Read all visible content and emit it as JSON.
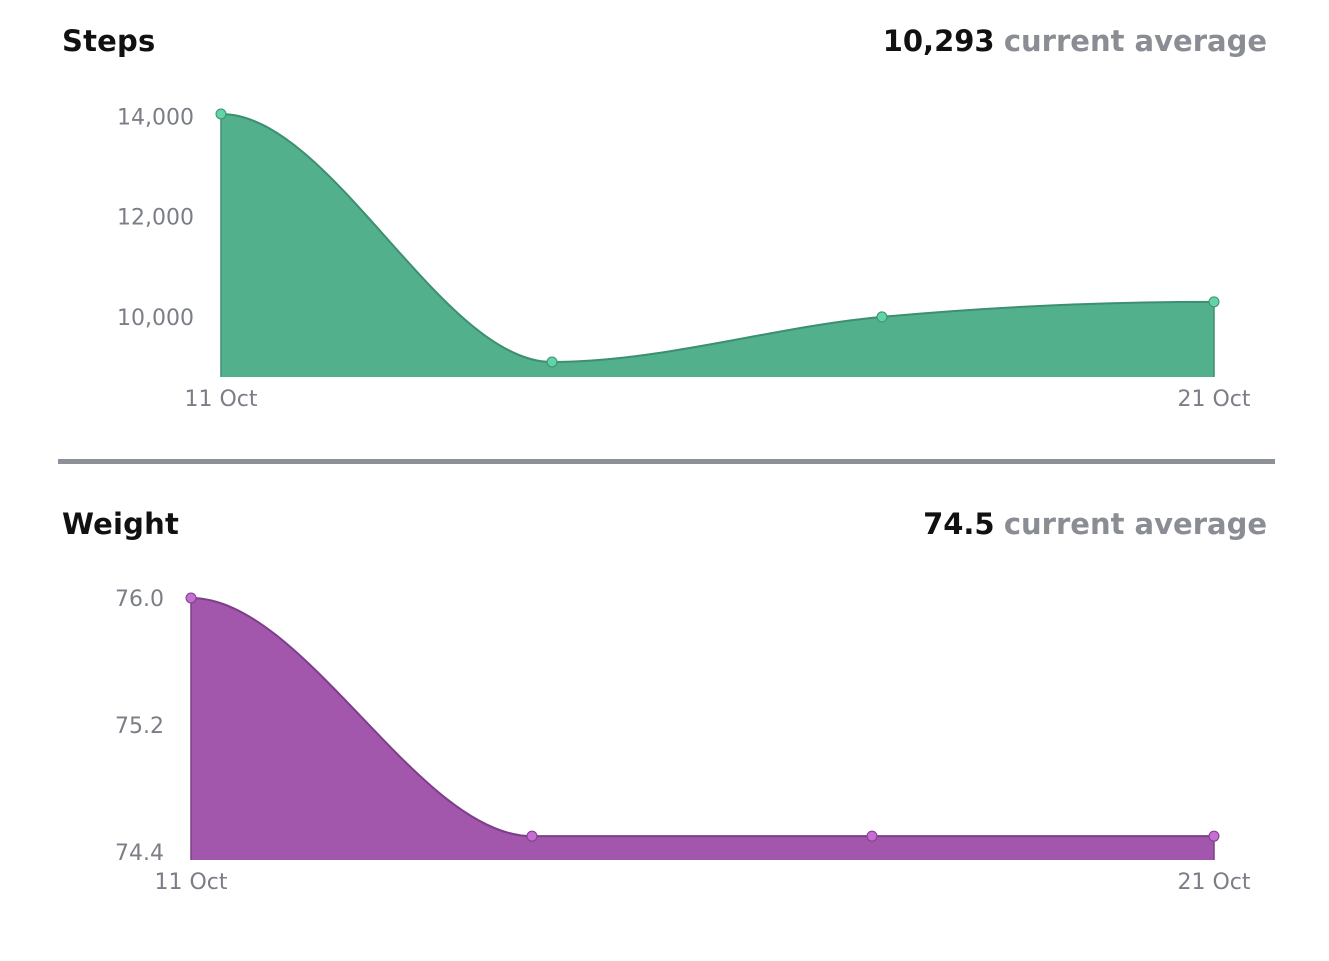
{
  "colors": {
    "steps_fill": "#52b08d",
    "steps_stroke": "#3d8f71",
    "steps_point": "#62d3a5",
    "weight_fill": "#a257ad",
    "weight_stroke": "#7d3f89",
    "weight_point": "#c56fd2",
    "divider": "#8e9097",
    "muted_text": "#8a8d93"
  },
  "summary_label": "current average",
  "chart_data": [
    {
      "type": "area",
      "title": "Steps",
      "summary_value": "10,293",
      "x": [
        "11 Oct",
        "14 Oct",
        "17 Oct",
        "21 Oct"
      ],
      "x_tick_labels": [
        "11 Oct",
        "21 Oct"
      ],
      "values": [
        14050,
        9100,
        10000,
        10300
      ],
      "ylim": [
        8800,
        14050
      ],
      "y_ticks": [
        10000,
        12000,
        14000
      ],
      "y_tick_labels": [
        "10,000",
        "12,000",
        "14,000"
      ],
      "grid": false,
      "legend": "none"
    },
    {
      "type": "area",
      "title": "Weight",
      "summary_value": "74.5",
      "x": [
        "11 Oct",
        "14 Oct",
        "17 Oct",
        "21 Oct"
      ],
      "x_tick_labels": [
        "11 Oct",
        "21 Oct"
      ],
      "values": [
        76.0,
        74.5,
        74.5,
        74.5
      ],
      "ylim": [
        74.35,
        76.0
      ],
      "y_ticks": [
        74.4,
        75.2,
        76.0
      ],
      "y_tick_labels": [
        "74.4",
        "75.2",
        "76.0"
      ],
      "grid": false,
      "legend": "none"
    }
  ]
}
